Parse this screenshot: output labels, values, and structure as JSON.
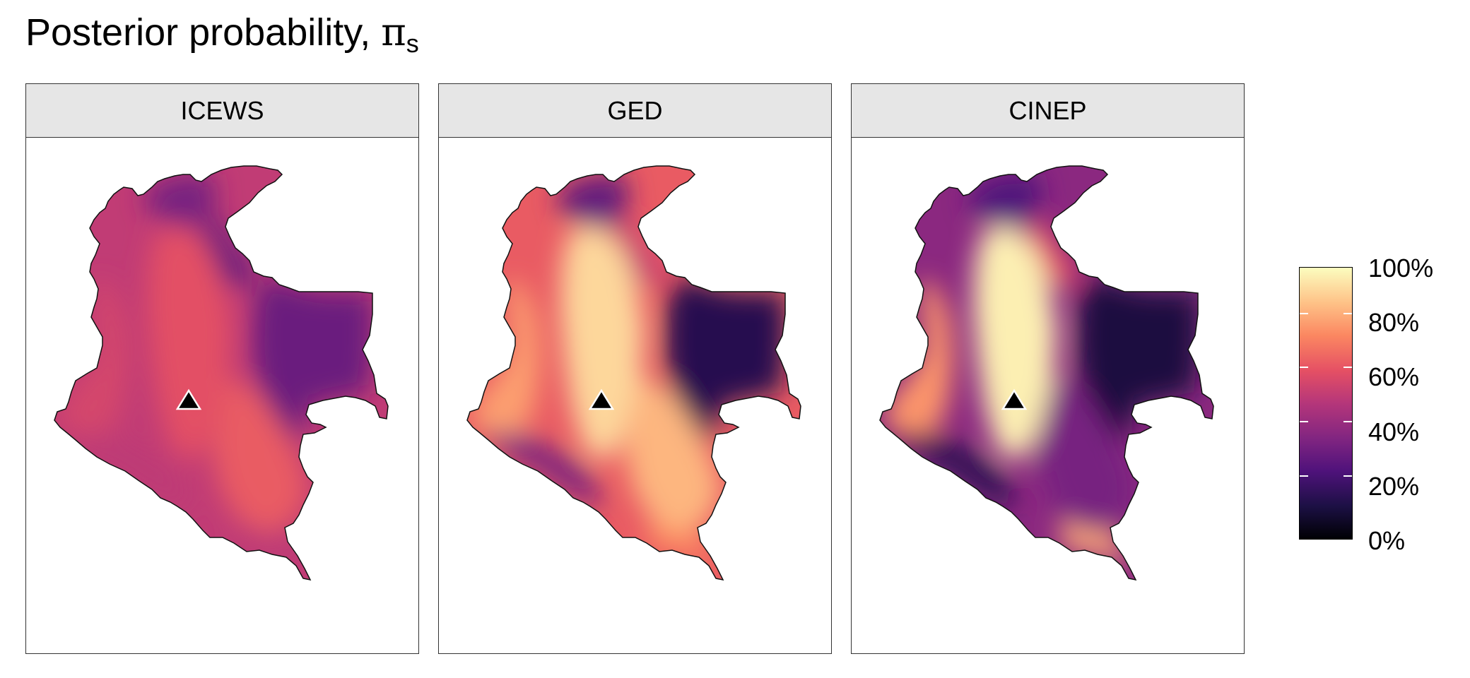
{
  "title": {
    "text": "Posterior probability, ",
    "symbol": "π",
    "subscript": "s"
  },
  "panels": [
    {
      "name": "ICEWS",
      "marker": "triangle",
      "regions": [
        {
          "name": "north-hills",
          "level": 0.35
        },
        {
          "name": "northeast",
          "level": 0.3
        },
        {
          "name": "center",
          "level": 0.62
        },
        {
          "name": "west-coast",
          "level": 0.58
        },
        {
          "name": "east-plains",
          "level": 0.32
        },
        {
          "name": "south-center",
          "level": 0.65
        },
        {
          "name": "southwest",
          "level": 0.52
        },
        {
          "name": "amazon-tail",
          "level": 0.52
        },
        {
          "name": "base",
          "level": 0.53
        }
      ]
    },
    {
      "name": "GED",
      "marker": "triangle",
      "regions": [
        {
          "name": "north-hills",
          "level": 0.3
        },
        {
          "name": "northeast",
          "level": 0.55
        },
        {
          "name": "center",
          "level": 0.92
        },
        {
          "name": "west-coast",
          "level": 0.8
        },
        {
          "name": "east-plains",
          "level": 0.15
        },
        {
          "name": "south-center",
          "level": 0.85
        },
        {
          "name": "southwest",
          "level": 0.35
        },
        {
          "name": "amazon-tail",
          "level": 0.75
        },
        {
          "name": "base",
          "level": 0.65
        }
      ]
    },
    {
      "name": "CINEP",
      "marker": "triangle",
      "regions": [
        {
          "name": "north-hills",
          "level": 0.25
        },
        {
          "name": "northeast",
          "level": 0.6
        },
        {
          "name": "center",
          "level": 0.97
        },
        {
          "name": "west-coast",
          "level": 0.78
        },
        {
          "name": "east-plains",
          "level": 0.12
        },
        {
          "name": "south-center",
          "level": 0.35
        },
        {
          "name": "southwest",
          "level": 0.15
        },
        {
          "name": "amazon-tail",
          "level": 0.82
        },
        {
          "name": "base",
          "level": 0.4
        }
      ]
    }
  ],
  "legend": {
    "labels": [
      "100%",
      "80%",
      "60%",
      "40%",
      "20%",
      "0%"
    ],
    "colormap": [
      "#000004",
      "#1c1044",
      "#4f127b",
      "#812581",
      "#b5367a",
      "#e55064",
      "#fb8761",
      "#fec287",
      "#fcfdbf"
    ]
  }
}
